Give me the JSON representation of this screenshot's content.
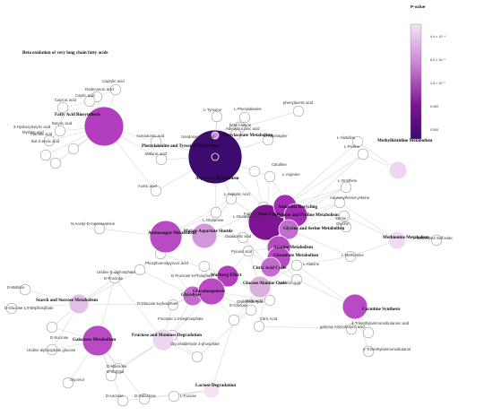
{
  "legend": {
    "title": "P-value",
    "ticks": [
      "4.4 × 10⁻⁴",
      "6.2 × 10⁻⁵",
      "1.5 × 10⁻⁵",
      "0.000",
      "0.000"
    ],
    "color_light": "#f3e3f5",
    "color_dark": "#3d0a6e"
  },
  "pathways": [
    {
      "id": "beta",
      "label": "Beta oxidation of very long chain fatty acids",
      "color": "#ffffff"
    },
    {
      "id": "fab",
      "label": "Fatty Acid Biosynthesis",
      "color": "#b23dbf"
    },
    {
      "id": "phetyr",
      "label": "Phenylalanine and Tyrosine Metabolism",
      "color": "#3d0a6e"
    },
    {
      "id": "phenylac",
      "label": "Phenylacetate Metabolism",
      "color": "#cf8fd8"
    },
    {
      "id": "asp",
      "label": "Aspartate Metabolism",
      "color": "#3d0a6e"
    },
    {
      "id": "urea",
      "label": "Urea Cycle",
      "color": "#7e1494"
    },
    {
      "id": "ammrec",
      "label": "Ammonia Recycling",
      "color": "#a52db5"
    },
    {
      "id": "argpro",
      "label": "Arginine and Proline Metabolism",
      "color": "#a52db5"
    },
    {
      "id": "glyser",
      "label": "Glycine and Serine Metabolism",
      "color": "#c26ccd"
    },
    {
      "id": "methhist",
      "label": "Methylhistidine Metabolism",
      "color": "#ecd6f0"
    },
    {
      "id": "methio",
      "label": "Methionine Metabolism",
      "color": "#f0dcf2"
    },
    {
      "id": "aminosugar",
      "label": "Aminosugar Metabolism",
      "color": "#b84bc4"
    },
    {
      "id": "malasp",
      "label": "Malate Aspartate Shuttle",
      "color": "#d497dc"
    },
    {
      "id": "alamet",
      "label": "Alanine Metabolism",
      "color": "#b84bc4"
    },
    {
      "id": "glumet",
      "label": "Glutamate Metabolism",
      "color": "#b84bc4"
    },
    {
      "id": "citric",
      "label": "Citric Acid Cycle",
      "color": "#c26ccd"
    },
    {
      "id": "warburg",
      "label": "Warburg Effect",
      "color": "#b23dbf"
    },
    {
      "id": "gluala",
      "label": "Glucose Alanine Cycle",
      "color": "#dbb0e1"
    },
    {
      "id": "glyco",
      "label": "Glycolysis",
      "color": "#c26ccd"
    },
    {
      "id": "gluconeo",
      "label": "Gluconeogenesis",
      "color": "#b84bc4"
    },
    {
      "id": "carnitine",
      "label": "Carnitine Synthesis",
      "color": "#b84bc4"
    },
    {
      "id": "starch",
      "label": "Starch and Sucrose Metabolism",
      "color": "#e3c0e7"
    },
    {
      "id": "fructman",
      "label": "Fructose and Mannose Degradation",
      "color": "#ecd6f0"
    },
    {
      "id": "galact",
      "label": "Galactose Metabolism",
      "color": "#b84bc4"
    },
    {
      "id": "lactose",
      "label": "Lactose Degradation",
      "color": "#f3e3f5"
    }
  ],
  "metabolites": [
    {
      "id": "m1",
      "label": "Caprylic acid"
    },
    {
      "id": "m2",
      "label": "Dodecanoic acid"
    },
    {
      "id": "m3",
      "label": "Capric acid"
    },
    {
      "id": "m4",
      "label": "Caproic acid"
    },
    {
      "id": "m5",
      "label": "Butyric acid"
    },
    {
      "id": "m6",
      "label": "Palmitic acid"
    },
    {
      "id": "m7",
      "label": "3-Hydroxybutyric acid"
    },
    {
      "id": "m8",
      "label": "Myristic acid"
    },
    {
      "id": "m9",
      "label": "But-2-enoic acid"
    },
    {
      "id": "m10",
      "label": "Acetoacetic acid"
    },
    {
      "id": "m11",
      "label": "Malonic acid"
    },
    {
      "id": "m12",
      "label": "Acetic acid"
    },
    {
      "id": "m13",
      "label": "L-Tyrosine"
    },
    {
      "id": "m14",
      "label": "L-Phenylalanine"
    },
    {
      "id": "m15",
      "label": "beta-Alanine"
    },
    {
      "id": "m16",
      "label": "Adenylsuccinic acid"
    },
    {
      "id": "m17",
      "label": "Ureidosuccinic acid"
    },
    {
      "id": "m18",
      "label": "phenylacetic acid"
    },
    {
      "id": "m19",
      "label": "L-Asparagine"
    },
    {
      "id": "m20",
      "label": "Citrulline"
    },
    {
      "id": "m21",
      "label": "L-Arginine"
    },
    {
      "id": "m22",
      "label": "L-Aspartic Acid"
    },
    {
      "id": "m23",
      "label": "L-Histidine"
    },
    {
      "id": "m24",
      "label": "L-Proline"
    },
    {
      "id": "m25",
      "label": "L-Ornithine"
    },
    {
      "id": "m26",
      "label": "Adenosylhomocysteine"
    },
    {
      "id": "m27",
      "label": "Serine"
    },
    {
      "id": "m28",
      "label": "Glycine"
    },
    {
      "id": "m29",
      "label": "L-Methionine"
    },
    {
      "id": "m30",
      "label": "L-Methionine Sulfoxide"
    },
    {
      "id": "m31",
      "label": "N-Acetyl-D-mannosamine"
    },
    {
      "id": "m32",
      "label": "L-Glutamine"
    },
    {
      "id": "m33",
      "label": "Fumaric acid"
    },
    {
      "id": "m34",
      "label": "L-Glutamic acid"
    },
    {
      "id": "m35",
      "label": "Oxalacetic acid"
    },
    {
      "id": "m36",
      "label": "Pyruvic acid"
    },
    {
      "id": "m37",
      "label": "L-Alanine"
    },
    {
      "id": "m38",
      "label": "Phosphoenolpyruvic acid"
    },
    {
      "id": "m39",
      "label": "D-Fructose 6-Phosphate"
    },
    {
      "id": "m40",
      "label": "Uridine 5'-diphosphate"
    },
    {
      "id": "m41",
      "label": "D-Fructose"
    },
    {
      "id": "m42",
      "label": "D-Maltose"
    },
    {
      "id": "m43",
      "label": "D-Glucose 1,6-bisphosphate"
    },
    {
      "id": "m44",
      "label": "D-Glucose 6-phosphate"
    },
    {
      "id": "m45",
      "label": "Succinic acid"
    },
    {
      "id": "m46",
      "label": "L-Malic acid"
    },
    {
      "id": "m47",
      "label": "Glyceraldehyde"
    },
    {
      "id": "m48",
      "label": "D-Glucose"
    },
    {
      "id": "m49",
      "label": "Citric Acid"
    },
    {
      "id": "m50",
      "label": "gamma-Aminobutyric acid"
    },
    {
      "id": "m51",
      "label": "4-Trimethylammoniobutanoic acid"
    },
    {
      "id": "m52",
      "label": "4-Trimethylammoniobutanol"
    },
    {
      "id": "m53",
      "label": "Fructose 1,6-bisphosphate"
    },
    {
      "id": "m54",
      "label": "Glyceraldehyde 3-phosphate"
    },
    {
      "id": "m55",
      "label": "D-Sucrose"
    },
    {
      "id": "m56",
      "label": "Uridine diphosphate glucose"
    },
    {
      "id": "m57",
      "label": "D-Mannose"
    },
    {
      "id": "m58",
      "label": "D-Sorbitol"
    },
    {
      "id": "m59",
      "label": "Glycerol"
    },
    {
      "id": "m60",
      "label": "D-Lactose"
    },
    {
      "id": "m61",
      "label": "D-Galactose"
    },
    {
      "id": "m62",
      "label": "L-Fucose"
    }
  ]
}
